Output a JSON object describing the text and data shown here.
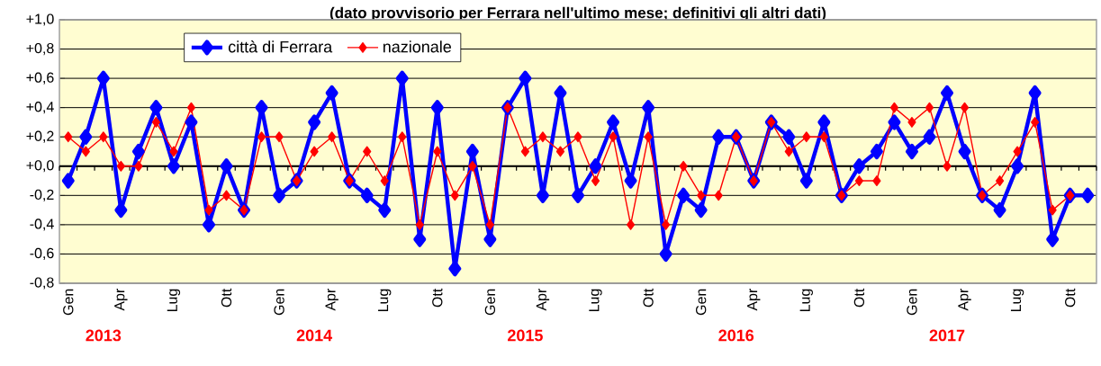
{
  "chart_data": {
    "type": "line",
    "title": "(dato provvisorio per Ferrara nell'ultimo mese; definitivi gli altri dati)",
    "categories": [
      "Gen",
      null,
      null,
      "Apr",
      null,
      null,
      "Lug",
      null,
      null,
      "Ott",
      null,
      null,
      "Gen",
      null,
      null,
      "Apr",
      null,
      null,
      "Lug",
      null,
      null,
      "Ott",
      null,
      null,
      "Gen",
      null,
      null,
      "Apr",
      null,
      null,
      "Lug",
      null,
      null,
      "Ott",
      null,
      null,
      "Gen",
      null,
      null,
      "Apr",
      null,
      null,
      "Lug",
      null,
      null,
      "Ott",
      null,
      null,
      "Gen",
      null,
      null,
      "Apr",
      null,
      null,
      "Lug",
      null,
      null,
      "Ott",
      null
    ],
    "series": [
      {
        "name": "città di Ferrara",
        "color": "#0000ff",
        "values": [
          -0.1,
          0.2,
          0.6,
          -0.3,
          0.1,
          0.4,
          0.0,
          0.3,
          -0.4,
          0.0,
          -0.3,
          0.4,
          -0.2,
          -0.1,
          0.3,
          0.5,
          -0.1,
          -0.2,
          -0.3,
          0.6,
          -0.5,
          0.4,
          -0.7,
          0.1,
          -0.5,
          0.4,
          0.6,
          -0.2,
          0.5,
          -0.2,
          0.0,
          0.3,
          -0.1,
          0.4,
          -0.6,
          -0.2,
          -0.3,
          0.2,
          0.2,
          -0.1,
          0.3,
          0.2,
          -0.1,
          0.3,
          -0.2,
          0.0,
          0.1,
          0.3,
          0.1,
          0.2,
          0.5,
          0.1,
          -0.2,
          -0.3,
          0.0,
          0.5,
          -0.5,
          -0.2,
          -0.2
        ]
      },
      {
        "name": "nazionale",
        "color": "#ff0000",
        "values": [
          0.2,
          0.1,
          0.2,
          0.0,
          0.0,
          0.3,
          0.1,
          0.4,
          -0.3,
          -0.2,
          -0.3,
          0.2,
          0.2,
          -0.1,
          0.1,
          0.2,
          -0.1,
          0.1,
          -0.1,
          0.2,
          -0.4,
          0.1,
          -0.2,
          0.0,
          -0.4,
          0.4,
          0.1,
          0.2,
          0.1,
          0.2,
          -0.1,
          0.2,
          -0.4,
          0.2,
          -0.4,
          0.0,
          -0.2,
          -0.2,
          0.2,
          -0.1,
          0.3,
          0.1,
          0.2,
          0.2,
          -0.2,
          -0.1,
          -0.1,
          0.4,
          0.3,
          0.4,
          0.0,
          0.4,
          -0.2,
          -0.1,
          0.1,
          0.3,
          -0.3,
          -0.2,
          null
        ]
      }
    ],
    "ylim": [
      -0.8,
      1.0
    ],
    "yticks": [
      {
        "value": -0.8,
        "label": "-0,8"
      },
      {
        "value": -0.6,
        "label": "-0,6"
      },
      {
        "value": -0.4,
        "label": "-0,4"
      },
      {
        "value": -0.2,
        "label": "-0,2"
      },
      {
        "value": 0.0,
        "label": "+0,0"
      },
      {
        "value": 0.2,
        "label": "+0,2"
      },
      {
        "value": 0.4,
        "label": "+0,4"
      },
      {
        "value": 0.6,
        "label": "+0,6"
      },
      {
        "value": 0.8,
        "label": "+0,8"
      },
      {
        "value": 1.0,
        "label": "+1,0"
      }
    ],
    "grid": "y",
    "legend": "top left",
    "marker": "diamond",
    "line_style": "solid",
    "annotations": [
      "2013",
      "2014",
      "2015",
      "2016",
      "2017"
    ]
  }
}
